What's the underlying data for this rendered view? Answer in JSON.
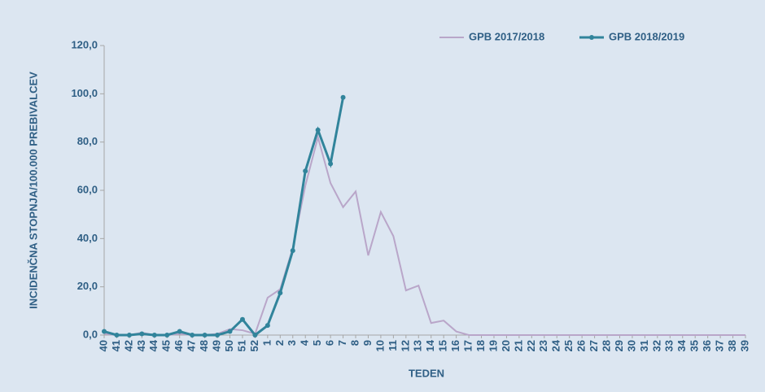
{
  "chart_data": {
    "type": "line",
    "x_label": "TEDEN",
    "y_label": "INCIDENČNA STOPNJA/100.000 PREBIVALCEV",
    "categories": [
      "40",
      "41",
      "42",
      "43",
      "44",
      "45",
      "46",
      "47",
      "48",
      "49",
      "50",
      "51",
      "52",
      "1",
      "2",
      "3",
      "4",
      "5",
      "6",
      "7",
      "8",
      "9",
      "10",
      "11",
      "12",
      "13",
      "14",
      "15",
      "16",
      "17",
      "18",
      "19",
      "20",
      "21",
      "22",
      "23",
      "24",
      "25",
      "26",
      "27",
      "28",
      "29",
      "30",
      "31",
      "32",
      "33",
      "34",
      "35",
      "36",
      "37",
      "38",
      "39"
    ],
    "series": [
      {
        "name": "GPB 2017/2018",
        "color": "#b9a6c9",
        "markers": false,
        "values": [
          0.5,
          0,
          0,
          1,
          0,
          0,
          0.5,
          0,
          0,
          0.5,
          2.5,
          2,
          0.5,
          15.5,
          19,
          36,
          62,
          82,
          63,
          53,
          59.5,
          33,
          51,
          41,
          18.5,
          20.5,
          5,
          6,
          1.5,
          0,
          0,
          0,
          0,
          0,
          0,
          0,
          0,
          0,
          0,
          0,
          0,
          0,
          0,
          0,
          0,
          0,
          0,
          0,
          0,
          0,
          0,
          0
        ]
      },
      {
        "name": "GPB 2018/2019",
        "color": "#31849b",
        "markers": true,
        "values": [
          1.5,
          0,
          0,
          0.5,
          0,
          0,
          1.5,
          0,
          0,
          0,
          1.5,
          6.5,
          0,
          4,
          17.5,
          35,
          68,
          85,
          71,
          98.5,
          null,
          null,
          null,
          null,
          null,
          null,
          null,
          null,
          null,
          null,
          null,
          null,
          null,
          null,
          null,
          null,
          null,
          null,
          null,
          null,
          null,
          null,
          null,
          null,
          null,
          null,
          null,
          null,
          null,
          null,
          null,
          null
        ]
      }
    ],
    "ylim": [
      0,
      120
    ],
    "yticks": [
      {
        "value": 0,
        "label": "0,0"
      },
      {
        "value": 20,
        "label": "20,0"
      },
      {
        "value": 40,
        "label": "40,0"
      },
      {
        "value": 60,
        "label": "60,0"
      },
      {
        "value": 80,
        "label": "80,0"
      },
      {
        "value": 100,
        "label": "100,0"
      },
      {
        "value": 120,
        "label": "120,0"
      }
    ],
    "legend": "top-right"
  }
}
